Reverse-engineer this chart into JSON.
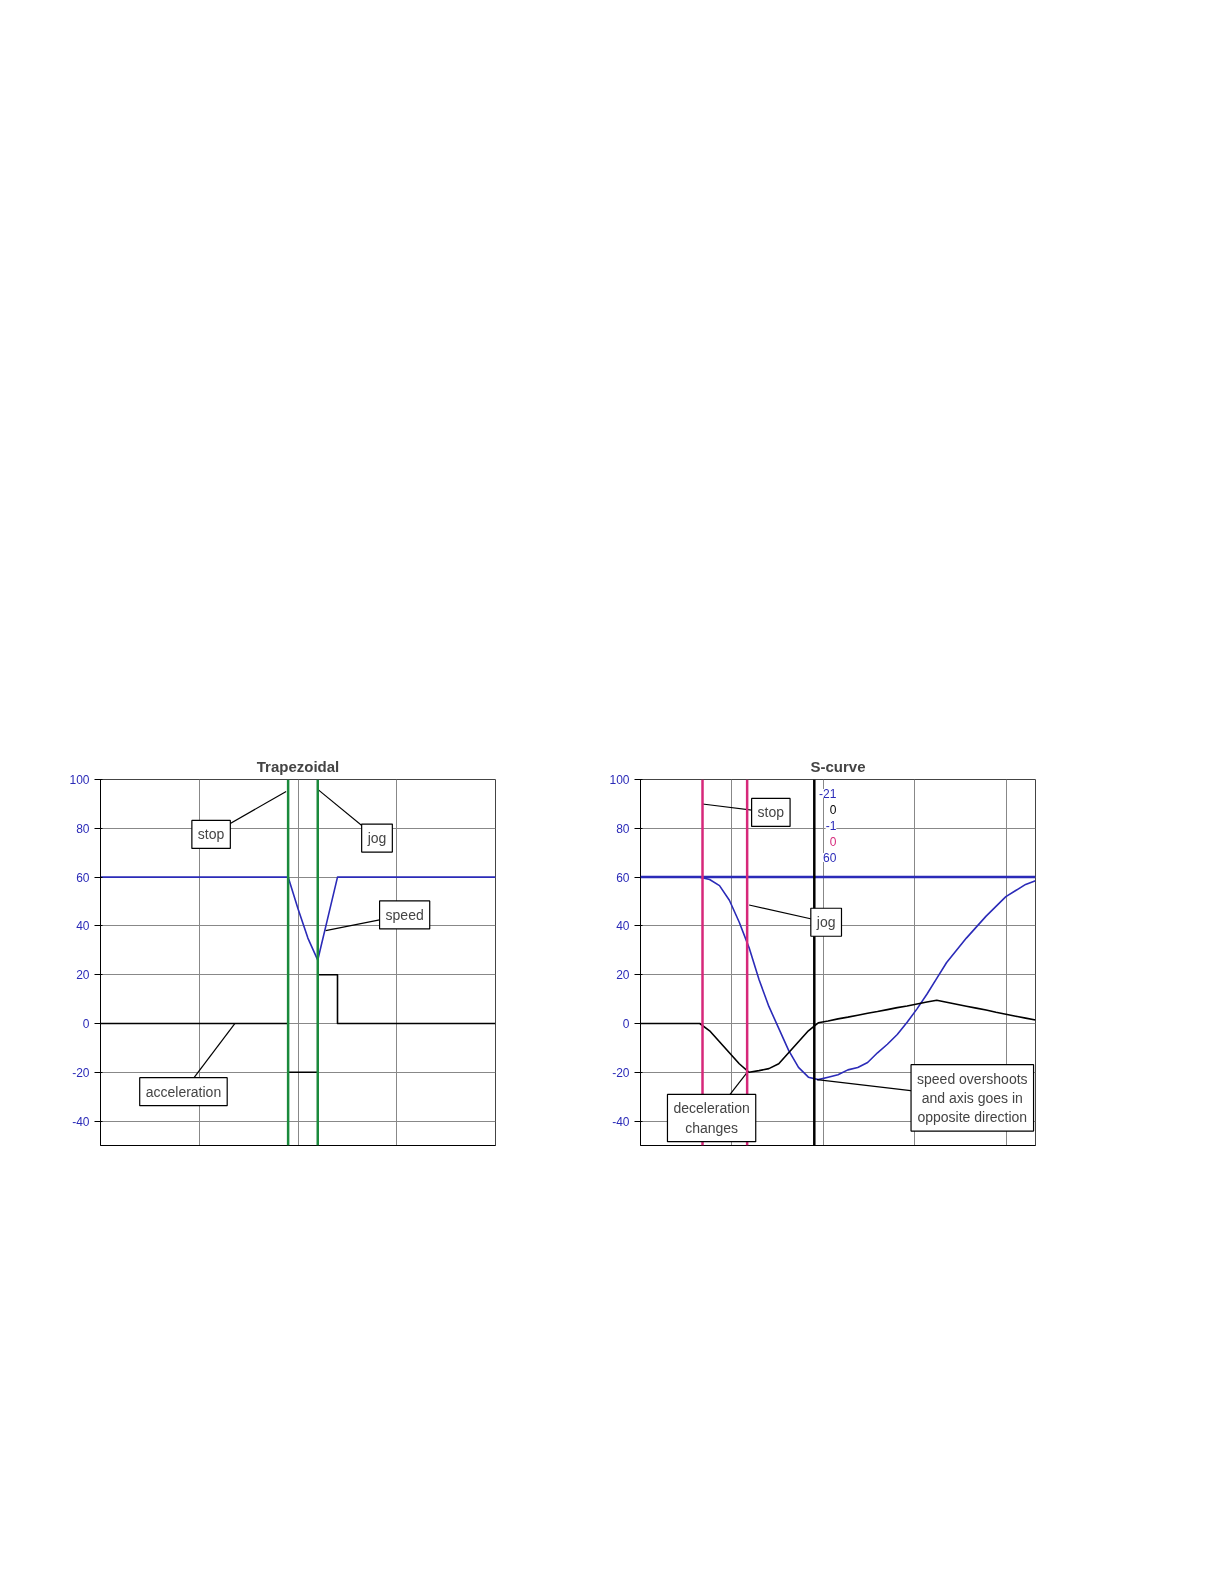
{
  "chart_data": [
    {
      "type": "line",
      "title": "Trapezoidal",
      "categories": [
        null,
        null,
        null,
        null,
        null,
        null,
        null,
        null,
        null,
        null,
        null,
        null,
        null,
        null,
        null,
        null,
        null,
        null,
        null,
        null,
        null,
        null,
        null,
        null,
        null,
        null,
        null,
        null,
        null,
        null,
        null,
        null,
        null,
        null,
        null,
        null,
        null,
        null,
        null,
        null,
        null
      ],
      "ylim": [
        -50,
        100
      ],
      "yticks": [
        -40,
        -20,
        0,
        20,
        40,
        60,
        80,
        100
      ],
      "tick_labels": "y",
      "grid": true,
      "series": [
        {
          "color": "#2b2bb8",
          "values": [
            60,
            60,
            60,
            60,
            60,
            60,
            60,
            60,
            60,
            60,
            60,
            60,
            60,
            60,
            60,
            60,
            60,
            60,
            60,
            60,
            47,
            35,
            26,
            43,
            60,
            60,
            60,
            60,
            60,
            60,
            60,
            60,
            60,
            60,
            60,
            60,
            60,
            60,
            60,
            60,
            60
          ]
        },
        {
          "type": "step",
          "color": "#000000",
          "values": [
            0,
            0,
            0,
            0,
            0,
            0,
            0,
            0,
            0,
            0,
            0,
            0,
            0,
            0,
            0,
            0,
            0,
            0,
            0,
            -20,
            -20,
            -20,
            20,
            20,
            0,
            0,
            0,
            0,
            0,
            0,
            0,
            0,
            0,
            0,
            0,
            0,
            0,
            0,
            0,
            0,
            0
          ]
        }
      ],
      "annotations": [
        "stop",
        "jog",
        "speed",
        "acceleration"
      ]
    },
    {
      "type": "line",
      "title": "S-curve",
      "categories": [
        null,
        null,
        null,
        null,
        null,
        null,
        null,
        null,
        null,
        null,
        null,
        null,
        null,
        null,
        null,
        null,
        null,
        null,
        null,
        null,
        null,
        null,
        null,
        null,
        null,
        null,
        null,
        null,
        null,
        null,
        null,
        null,
        null,
        null,
        null,
        null,
        null,
        null,
        null,
        null,
        null
      ],
      "ylim": [
        -50,
        100
      ],
      "yticks": [
        -40,
        -20,
        0,
        20,
        40,
        60,
        80,
        100
      ],
      "tick_labels": "y",
      "grid": true,
      "series": [
        {
          "color": "#2b2bb8",
          "values": [
            60,
            60,
            60,
            60,
            60,
            60,
            60,
            59,
            56.5,
            50.5,
            41.5,
            31,
            18,
            7,
            -2,
            -11,
            -18,
            -22,
            -23,
            -22,
            -21,
            -19,
            -18,
            -16,
            -12,
            -8.5,
            -4.5,
            0.5,
            6,
            12,
            18.5,
            25,
            30,
            35,
            39.5,
            44,
            48,
            52,
            54.5,
            57,
            58.5
          ]
        },
        {
          "color": "#000000",
          "values": [
            0,
            0,
            0,
            0,
            0,
            0,
            0,
            -3,
            -7.5,
            -12,
            -16.5,
            -20,
            -19.3,
            -18.5,
            -16.5,
            -12,
            -7.5,
            -3,
            0.3,
            1,
            1.9,
            2.6,
            3.4,
            4.2,
            4.9,
            5.7,
            6.5,
            7.2,
            8,
            8.8,
            9.5,
            8.7,
            7.9,
            7.1,
            6.3,
            5.5,
            4.6,
            3.8,
            3,
            2.2,
            1.4
          ]
        }
      ],
      "ref_lines": [
        {
          "axis": "y",
          "value": 60,
          "color": "#2b2bb8"
        }
      ],
      "annotations": [
        "stop",
        "jog",
        "deceleration\nchanges",
        "speed overshoots\nand axis goes in\nopposite direction",
        "-21",
        "0",
        "-1",
        "0",
        "60"
      ]
    }
  ]
}
